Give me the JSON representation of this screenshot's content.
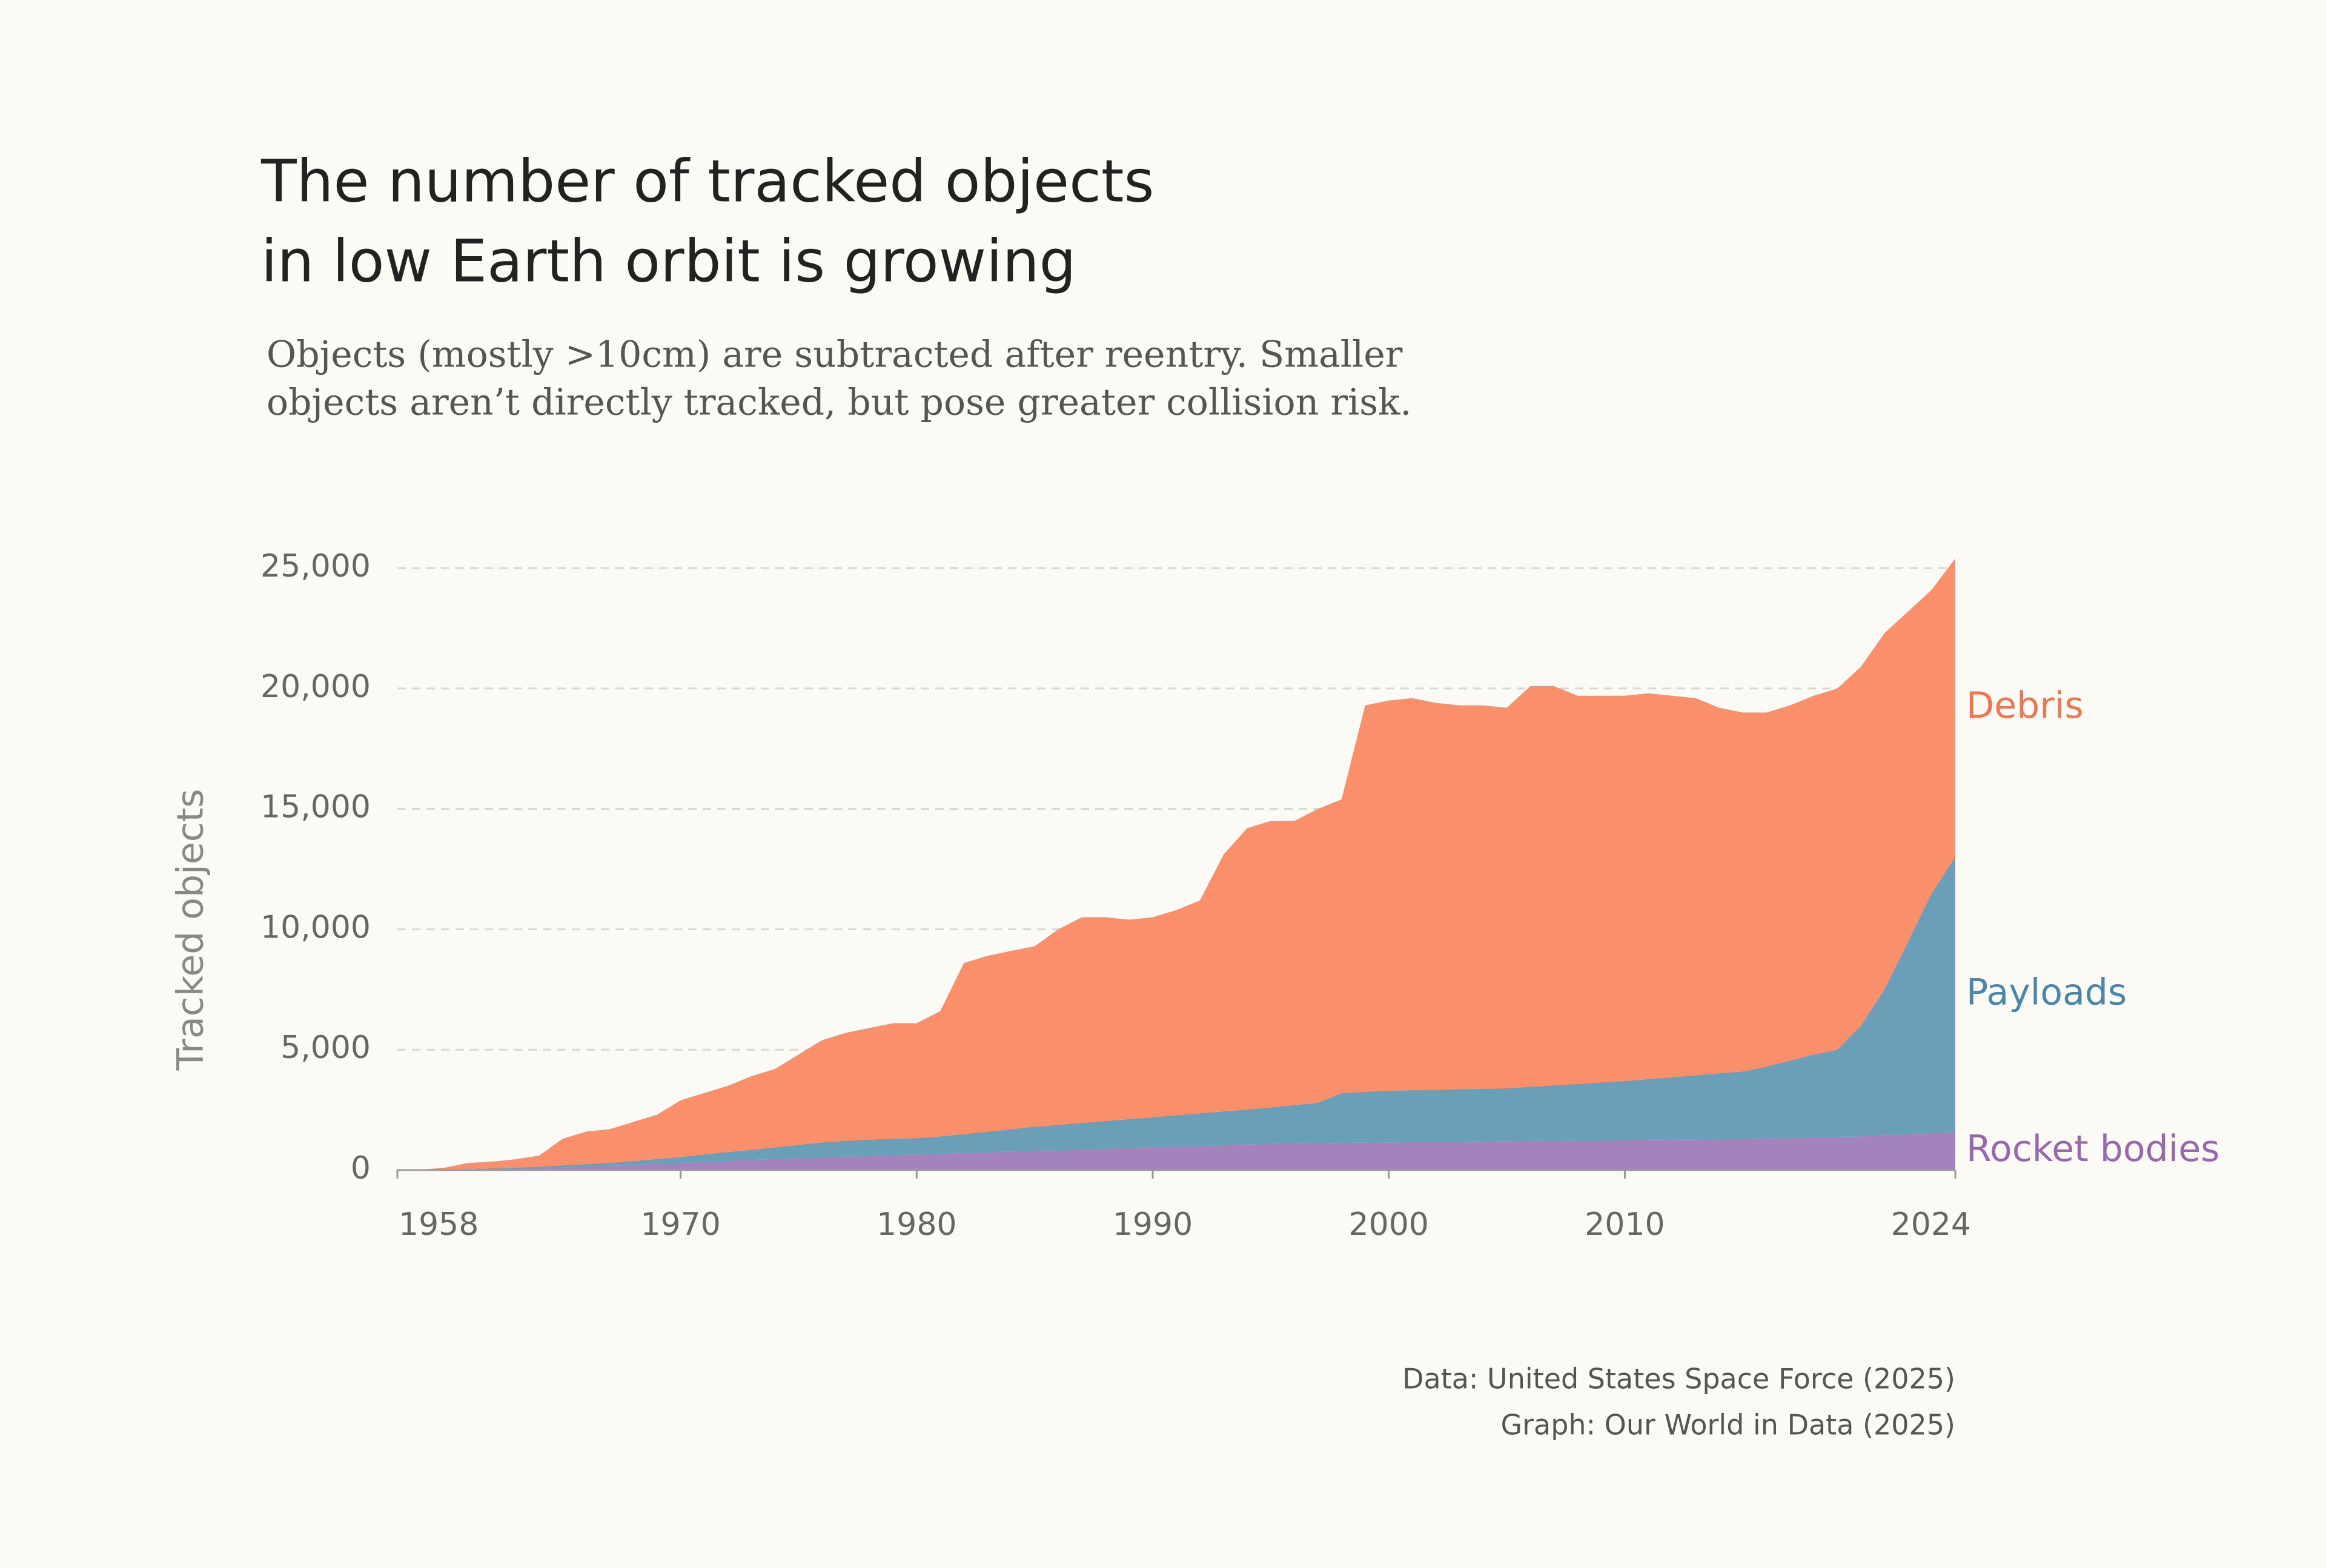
{
  "chart_data": {
    "type": "area",
    "stacked": true,
    "title": [
      "The number of tracked objects",
      "in low Earth orbit is growing"
    ],
    "subtitle": [
      "Objects (mostly >10cm) are subtracted after reentry. Smaller",
      "objects aren’t directly tracked, but pose greater collision risk."
    ],
    "y_label": "Tracked objects",
    "source": [
      "Data:  United States Space Force (2025)",
      "Graph: Our World in Data (2025)"
    ],
    "x": [
      1958,
      1959,
      1960,
      1961,
      1962,
      1963,
      1964,
      1965,
      1966,
      1967,
      1968,
      1969,
      1970,
      1971,
      1972,
      1973,
      1974,
      1975,
      1976,
      1977,
      1978,
      1979,
      1980,
      1981,
      1982,
      1983,
      1984,
      1985,
      1986,
      1987,
      1988,
      1989,
      1990,
      1991,
      1992,
      1993,
      1994,
      1995,
      1996,
      1997,
      1998,
      1999,
      2000,
      2001,
      2002,
      2003,
      2004,
      2005,
      2006,
      2007,
      2008,
      2009,
      2010,
      2011,
      2012,
      2013,
      2014,
      2015,
      2016,
      2017,
      2018,
      2019,
      2020,
      2021,
      2022,
      2023,
      2024
    ],
    "series": [
      {
        "name": "Rocket bodies",
        "color": "#a482bb",
        "label_color": "#9668ae",
        "values": [
          0,
          10,
          20,
          40,
          60,
          80,
          90,
          100,
          140,
          180,
          220,
          260,
          300,
          340,
          380,
          420,
          460,
          500,
          530,
          560,
          590,
          620,
          650,
          680,
          710,
          740,
          770,
          800,
          830,
          860,
          890,
          920,
          950,
          980,
          1010,
          1040,
          1070,
          1100,
          1110,
          1120,
          1130,
          1140,
          1150,
          1160,
          1170,
          1180,
          1190,
          1200,
          1210,
          1220,
          1230,
          1240,
          1250,
          1260,
          1270,
          1280,
          1290,
          1300,
          1320,
          1340,
          1360,
          1380,
          1400,
          1450,
          1500,
          1550,
          1600
        ]
      },
      {
        "name": "Payloads",
        "color": "#6a9fb9",
        "label_color": "#4b87a9",
        "values": [
          0,
          0,
          0,
          10,
          20,
          30,
          50,
          100,
          110,
          120,
          160,
          200,
          250,
          310,
          370,
          430,
          490,
          550,
          620,
          660,
          680,
          680,
          680,
          720,
          790,
          860,
          930,
          1000,
          1050,
          1100,
          1150,
          1200,
          1250,
          1300,
          1350,
          1400,
          1450,
          1500,
          1590,
          1680,
          2070,
          2110,
          2150,
          2160,
          2170,
          2180,
          2190,
          2200,
          2250,
          2300,
          2350,
          2400,
          2450,
          2520,
          2590,
          2660,
          2730,
          2800,
          2980,
          3210,
          3440,
          3620,
          4600,
          6050,
          8000,
          9950,
          11400
        ]
      },
      {
        "name": "Debris",
        "color": "#f98f6b",
        "label_color": "#ec7750",
        "values": [
          0,
          10,
          80,
          250,
          270,
          340,
          460,
          1100,
          1350,
          1400,
          1620,
          1840,
          2350,
          2550,
          2750,
          3050,
          3250,
          3750,
          4250,
          4480,
          4630,
          4800,
          4770,
          5200,
          7100,
          7300,
          7400,
          7500,
          8120,
          8540,
          8460,
          8280,
          8300,
          8520,
          8840,
          10660,
          11680,
          11900,
          11800,
          12200,
          12200,
          16050,
          16200,
          16280,
          16060,
          15940,
          15920,
          15800,
          16640,
          16580,
          16120,
          16060,
          16000,
          16020,
          15840,
          15660,
          15180,
          14900,
          14700,
          14750,
          14900,
          15000,
          14900,
          14800,
          13700,
          12600,
          12400
        ]
      }
    ],
    "xlim": [
      1958,
      2024
    ],
    "xticks": [
      1958,
      1970,
      1980,
      1990,
      2000,
      2010,
      2024
    ],
    "ylim": [
      0,
      25000
    ],
    "yticks": [
      0,
      {
        "value": 5000,
        "label": "5,000"
      },
      {
        "value": 10000,
        "label": "10,000"
      },
      {
        "value": 15000,
        "label": "15,000"
      },
      {
        "value": 20000,
        "label": "20,000"
      },
      {
        "value": 25000,
        "label": "25,000"
      }
    ],
    "grid": true
  }
}
